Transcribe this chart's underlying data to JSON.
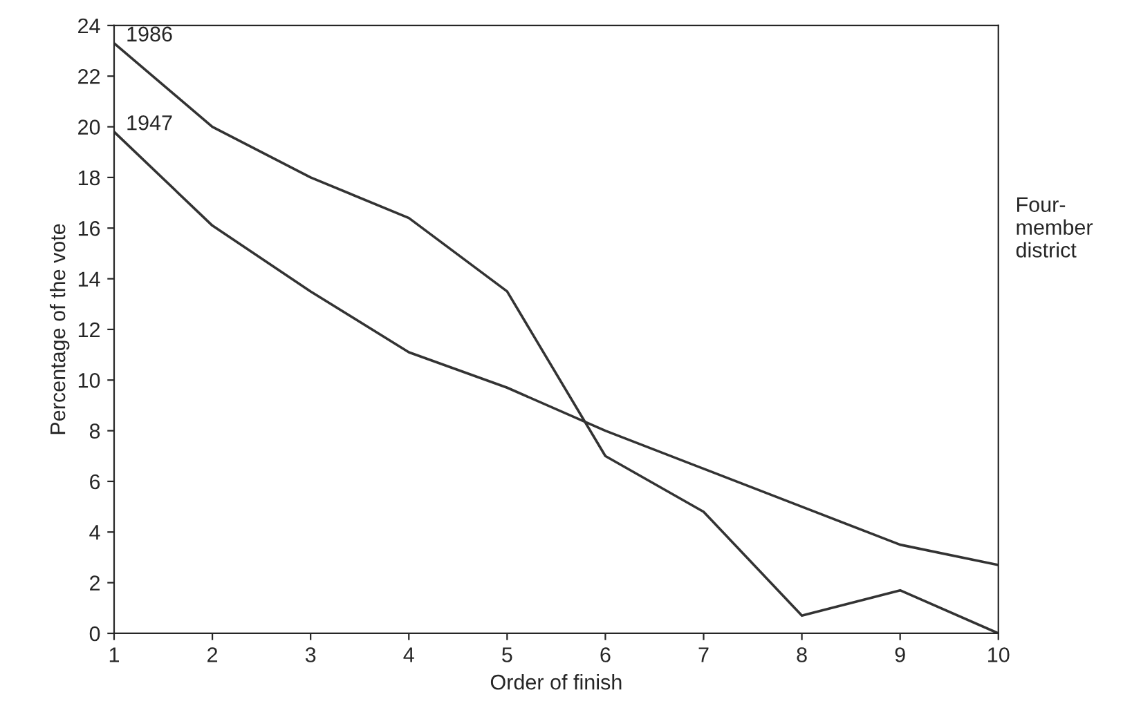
{
  "chart_data": {
    "type": "line",
    "xlabel": "Order of finish",
    "ylabel": "Percentage of the vote",
    "x": [
      1,
      2,
      3,
      4,
      5,
      6,
      7,
      8,
      9,
      10
    ],
    "series": [
      {
        "name": "1986",
        "color": "#333333",
        "values": [
          23.3,
          20.0,
          18.0,
          16.4,
          13.5,
          7.0,
          4.8,
          0.7,
          1.7,
          0.0
        ]
      },
      {
        "name": "1947",
        "color": "#333333",
        "values": [
          19.8,
          16.1,
          13.5,
          11.1,
          9.7,
          8.0,
          6.5,
          5.0,
          3.5,
          2.7
        ]
      }
    ],
    "xlim": [
      1,
      10
    ],
    "xticks": [
      1,
      2,
      3,
      4,
      5,
      6,
      7,
      8,
      9,
      10
    ],
    "ylim": [
      0,
      24
    ],
    "yticks": [
      0,
      2,
      4,
      6,
      8,
      10,
      12,
      14,
      16,
      18,
      20,
      22,
      24
    ],
    "grid": false,
    "legend": false,
    "annotations": [
      "Four-\nmember\ndistrict"
    ]
  }
}
